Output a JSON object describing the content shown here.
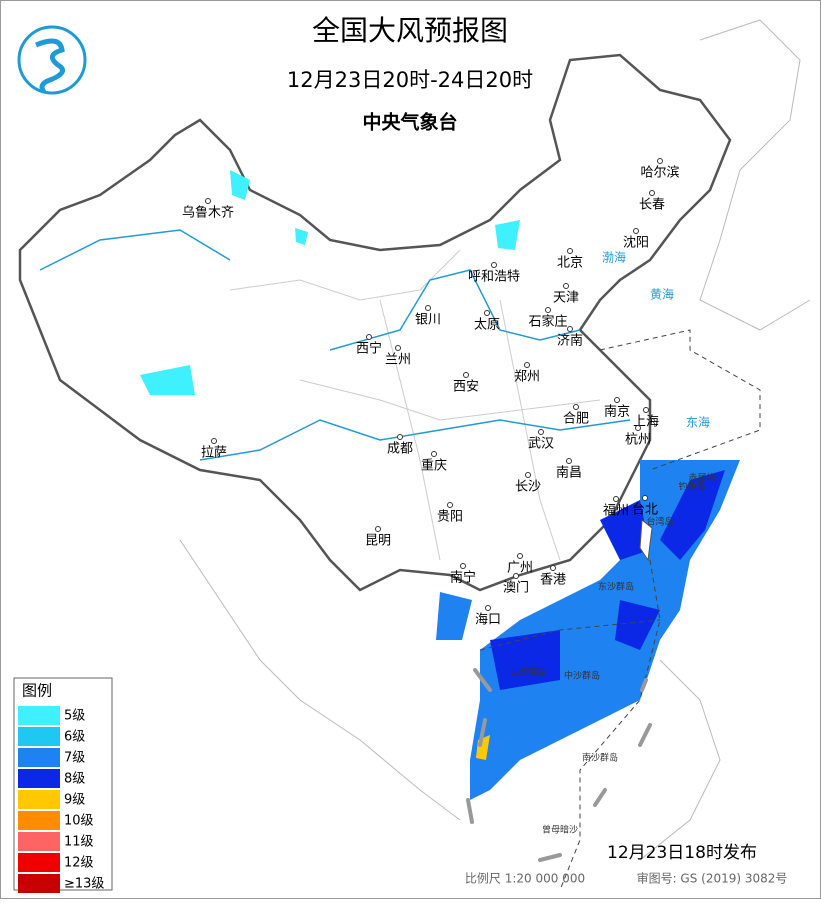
{
  "header": {
    "title": "全国大风预报图",
    "subtitle": "12月23日20时-24日20时",
    "agency": "中央气象台"
  },
  "cities": [
    "乌鲁木齐",
    "哈尔滨",
    "长春",
    "沈阳",
    "北京",
    "天津",
    "呼和浩特",
    "银川",
    "太原",
    "石家庄",
    "济南",
    "西宁",
    "兰州",
    "郑州",
    "西安",
    "南京",
    "合肥",
    "上海",
    "武汉",
    "杭州",
    "成都",
    "拉萨",
    "重庆",
    "南昌",
    "长沙",
    "福州",
    "台北",
    "贵阳",
    "昆明",
    "南宁",
    "广州",
    "澳门",
    "香港",
    "海口"
  ],
  "seas": [
    "渤海",
    "黄海",
    "东海"
  ],
  "islands": [
    "台湾岛",
    "东沙群岛",
    "中沙群岛",
    "西沙群岛",
    "南沙群岛",
    "曾母暗沙",
    "钓鱼岛",
    "赤尾屿"
  ],
  "legend": {
    "title": "图例",
    "items": [
      {
        "label": "5级",
        "color": "#3ff0ff"
      },
      {
        "label": "6级",
        "color": "#1ec8f0"
      },
      {
        "label": "7级",
        "color": "#1e82f0"
      },
      {
        "label": "8级",
        "color": "#0a28e6"
      },
      {
        "label": "9级",
        "color": "#ffc800"
      },
      {
        "label": "10级",
        "color": "#ff8c00"
      },
      {
        "label": "11级",
        "color": "#ff6464"
      },
      {
        "label": "12级",
        "color": "#f00000"
      },
      {
        "label": "≥13级",
        "color": "#c80000"
      }
    ]
  },
  "footer": {
    "issued": "12月23日18时发布",
    "scale": "比例尺 1:20 000 000",
    "review": "审图号: GS (2019) 3082号"
  }
}
